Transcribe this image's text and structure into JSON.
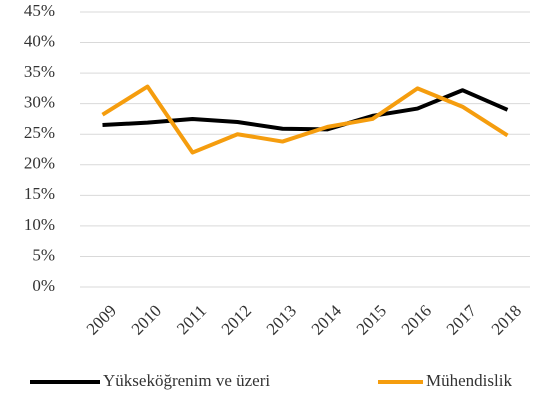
{
  "chart_data": {
    "type": "line",
    "categories": [
      "2009",
      "2010",
      "2011",
      "2012",
      "2013",
      "2014",
      "2015",
      "2016",
      "2017",
      "2018"
    ],
    "series": [
      {
        "name": "Yükseköğrenim ve üzeri",
        "color": "#000000",
        "values": [
          26.5,
          26.9,
          27.5,
          27.0,
          25.9,
          25.8,
          28.0,
          29.2,
          32.2,
          29.0
        ]
      },
      {
        "name": "Mühendislik",
        "color": "#f59d0e",
        "values": [
          28.2,
          32.8,
          22.0,
          25.0,
          23.8,
          26.2,
          27.5,
          32.5,
          29.5,
          24.8
        ]
      }
    ],
    "ylim": [
      0,
      45
    ],
    "yticks": [
      {
        "value": 0,
        "label": "0%"
      },
      {
        "value": 5,
        "label": "5%"
      },
      {
        "value": 10,
        "label": "10%"
      },
      {
        "value": 15,
        "label": "15%"
      },
      {
        "value": 20,
        "label": "20%"
      },
      {
        "value": 25,
        "label": "25%"
      },
      {
        "value": 30,
        "label": "30%"
      },
      {
        "value": 35,
        "label": "35%"
      },
      {
        "value": 40,
        "label": "40%"
      },
      {
        "value": 45,
        "label": "45%"
      }
    ],
    "grid": true,
    "legend": "bottom"
  }
}
